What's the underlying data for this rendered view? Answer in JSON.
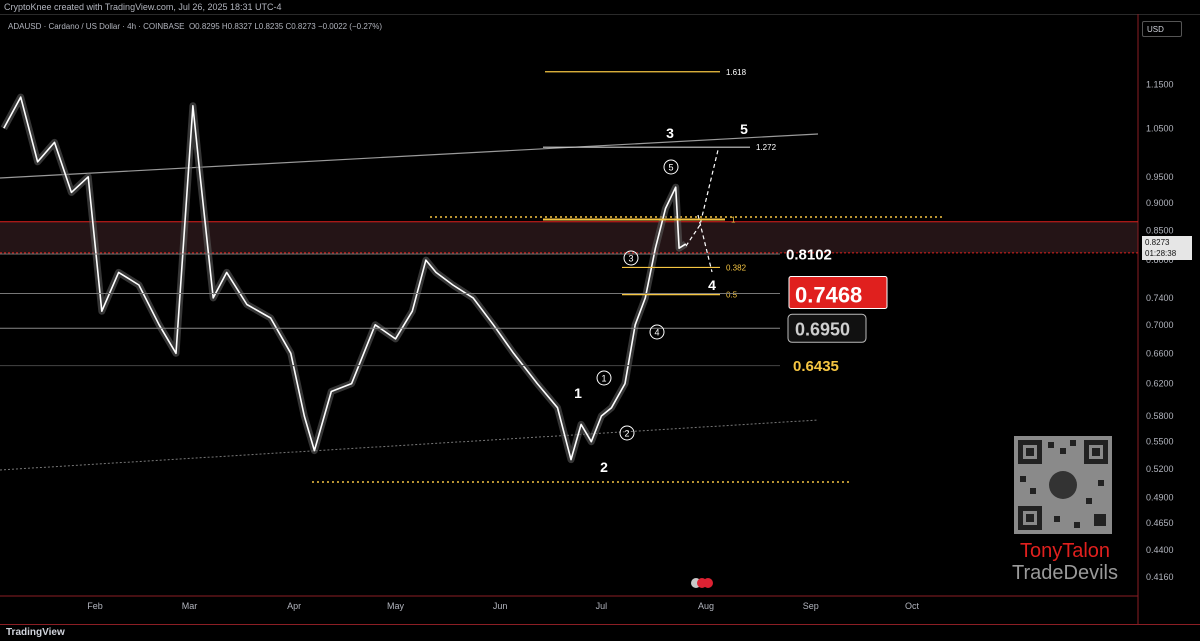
{
  "header": {
    "credit": "CryptoKnee created with TradingView.com, Jul 26, 2025 18:31 UTC-4"
  },
  "legend": {
    "symbol": "ADAUSD · Cardano / US Dollar · 4h · COINBASE",
    "ohlc": "O0.8295  H0.8327  L0.8235  C0.8273  −0.0022 (−0.27%)"
  },
  "currency_button": "USD",
  "last_price": {
    "value": "0.8273",
    "countdown": "01:28:38"
  },
  "footer": {
    "logo_text": "TradingView"
  },
  "brand": {
    "name_top": "TonyTalon",
    "name_bottom": "TradeDevils"
  },
  "colors": {
    "background": "#000000",
    "candles": "#ffffff",
    "resistance_red": "#e0201e",
    "fib_gold": "#f5c542",
    "wave_labels": "#ffffff",
    "label_red_bg": "#e0201e"
  },
  "chart_data": {
    "type": "line",
    "title": "",
    "xlabel": "",
    "ylabel": "",
    "x_ticks": [
      "Feb",
      "Mar",
      "Apr",
      "May",
      "Jun",
      "Jul",
      "Aug",
      "Sep",
      "Oct"
    ],
    "y_ticks": [
      "1.1500",
      "1.0500",
      "0.9500",
      "0.9000",
      "0.8500",
      "0.8000",
      "0.7400",
      "0.7000",
      "0.6600",
      "0.6200",
      "0.5800",
      "0.5500",
      "0.5200",
      "0.4900",
      "0.4650",
      "0.4400",
      "0.4160"
    ],
    "ylim": [
      0.4,
      1.26
    ],
    "y_scale": "log",
    "grid": false,
    "legend": "none",
    "series": [
      {
        "values_x": [
          "2025-01-05",
          "2025-01-10",
          "2025-01-15",
          "2025-01-20",
          "2025-01-25",
          "2025-01-30",
          "2025-02-03",
          "2025-02-08",
          "2025-02-14",
          "2025-02-20",
          "2025-02-25",
          "2025-03-02",
          "2025-03-04",
          "2025-03-08",
          "2025-03-12",
          "2025-03-18",
          "2025-03-25",
          "2025-03-31",
          "2025-04-04",
          "2025-04-07",
          "2025-04-12",
          "2025-04-18",
          "2025-04-25",
          "2025-05-01",
          "2025-05-06",
          "2025-05-10",
          "2025-05-13",
          "2025-05-18",
          "2025-05-24",
          "2025-05-30",
          "2025-06-05",
          "2025-06-12",
          "2025-06-18",
          "2025-06-22",
          "2025-06-25",
          "2025-06-28",
          "2025-07-01",
          "2025-07-04",
          "2025-07-08",
          "2025-07-11",
          "2025-07-14",
          "2025-07-17",
          "2025-07-20",
          "2025-07-23",
          "2025-07-24",
          "2025-07-26"
        ],
        "values": [
          1.05,
          1.12,
          0.98,
          1.02,
          0.92,
          0.95,
          0.72,
          0.78,
          0.76,
          0.7,
          0.66,
          1.1,
          0.96,
          0.74,
          0.78,
          0.73,
          0.71,
          0.66,
          0.58,
          0.54,
          0.61,
          0.62,
          0.7,
          0.68,
          0.72,
          0.8,
          0.78,
          0.76,
          0.74,
          0.7,
          0.66,
          0.62,
          0.59,
          0.53,
          0.57,
          0.55,
          0.58,
          0.59,
          0.62,
          0.7,
          0.74,
          0.82,
          0.89,
          0.93,
          0.82,
          0.8273
        ]
      }
    ],
    "horizontal_levels": [
      {
        "label": "0.8102",
        "value": 0.8102
      },
      {
        "label": "0.7468",
        "value": 0.7468
      },
      {
        "label": "0.6950",
        "value": 0.695
      },
      {
        "label": "0.6435",
        "value": 0.6435
      }
    ],
    "fib_levels": [
      {
        "label": "1.618",
        "value": 1.18
      },
      {
        "label": "1.272",
        "value": 1.01
      },
      {
        "label": "1",
        "value": 0.87
      },
      {
        "label": "0.382",
        "value": 0.788
      },
      {
        "label": "0.5",
        "value": 0.745
      }
    ],
    "wave_labels": [
      "1",
      "2",
      "3",
      "4",
      "5"
    ],
    "sub_wave_labels": [
      "1",
      "2",
      "3",
      "4",
      "5"
    ]
  }
}
